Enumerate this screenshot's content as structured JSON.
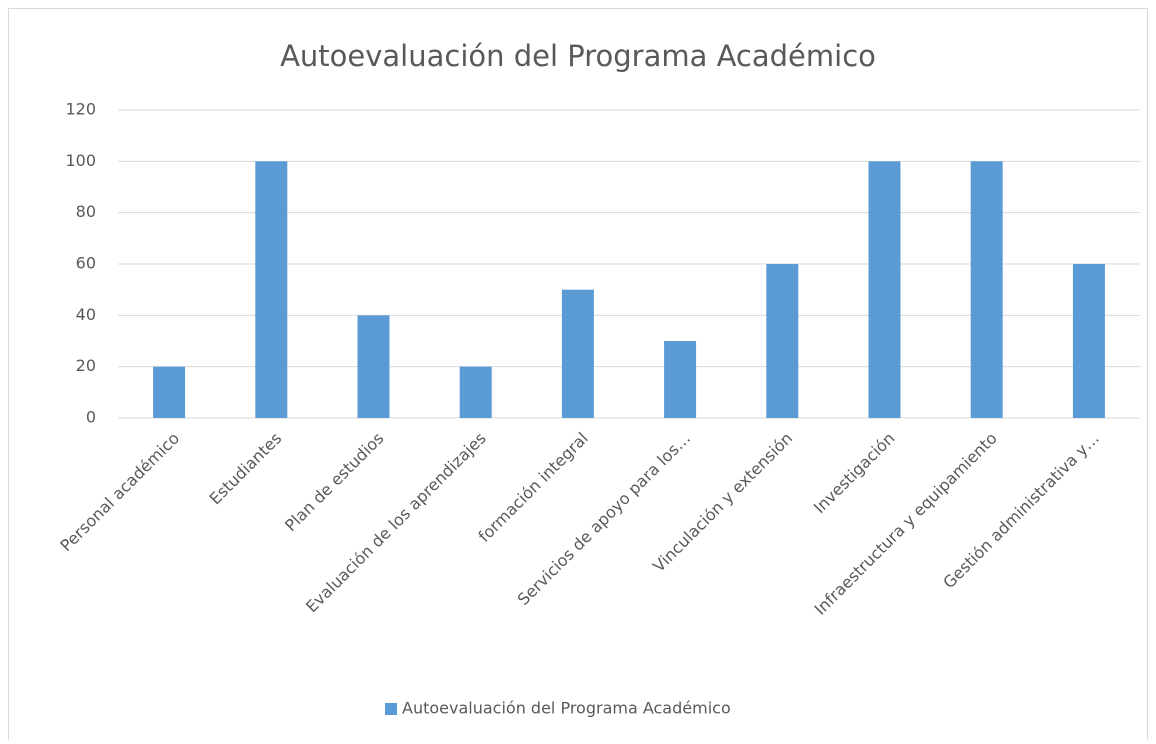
{
  "chart_data": {
    "type": "bar",
    "title": "Autoevaluación del Programa Académico",
    "categories": [
      "Personal académico",
      "Estudiantes",
      "Plan de estudios",
      "Evaluación de los aprendizajes",
      "formación integral",
      "Servicios de apoyo para los…",
      "Vinculación y extensión",
      "Investigación",
      "Infraestructura y equipamiento",
      "Gestión administrativa y…"
    ],
    "series": [
      {
        "name": "Autoevaluación del Programa Académico",
        "color": "#5b9bd5",
        "values": [
          20,
          100,
          40,
          20,
          50,
          30,
          60,
          100,
          100,
          60
        ]
      }
    ],
    "ylim": [
      0,
      120
    ],
    "yticks": [
      0,
      20,
      40,
      60,
      80,
      100,
      120
    ],
    "grid": true,
    "legend": "bottom"
  }
}
